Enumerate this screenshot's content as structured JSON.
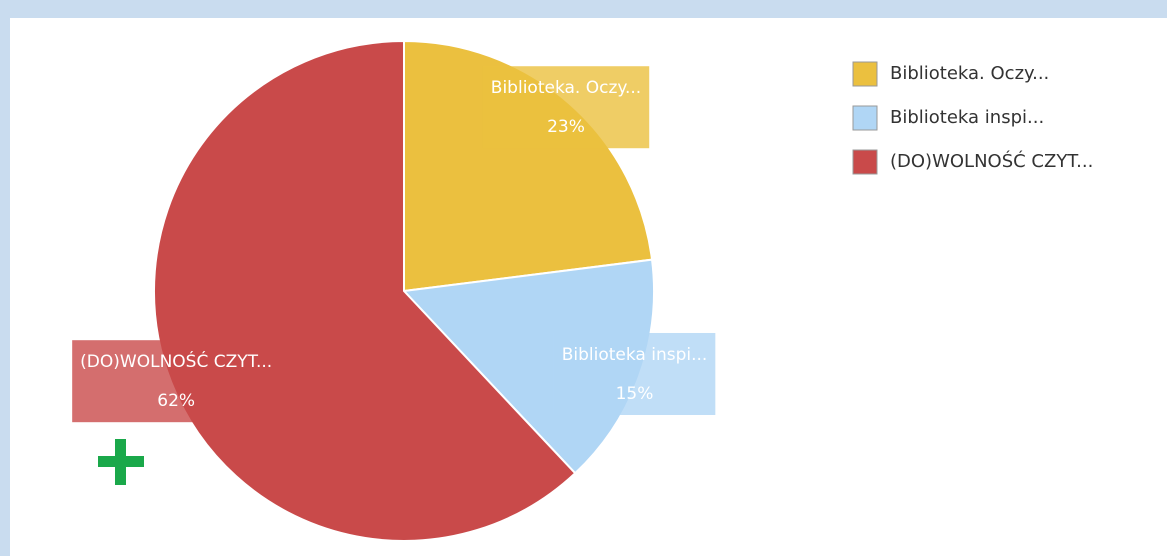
{
  "chart_data": {
    "type": "pie",
    "categories": [
      "Biblioteka. Oczy...",
      "Biblioteka inspi...",
      "(DO)WOLNOŚĆ CZYT..."
    ],
    "values": [
      23,
      15,
      62
    ],
    "value_labels": [
      "23%",
      "15%",
      "62%"
    ],
    "colors": [
      "#ebc03f",
      "#b0d6f5",
      "#c94a4a"
    ],
    "legend": "top-right"
  }
}
